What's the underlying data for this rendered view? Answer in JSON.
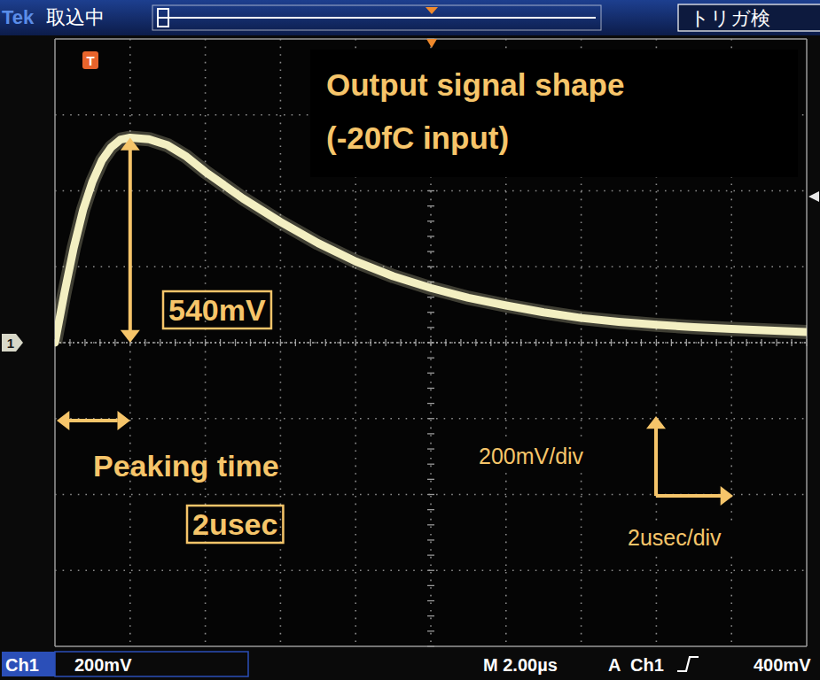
{
  "chart_data": {
    "type": "line",
    "title": "Output signal shape",
    "subtitle": "(-20fC input)",
    "x": [
      0,
      0.25,
      0.5,
      0.75,
      1,
      1.25,
      1.5,
      1.75,
      2,
      2.5,
      3,
      3.5,
      4,
      5,
      6,
      7,
      8,
      9,
      10,
      11,
      12,
      13,
      14,
      15,
      16,
      17,
      18,
      19,
      20
    ],
    "values": [
      0,
      130,
      250,
      350,
      425,
      480,
      515,
      535,
      540,
      536,
      520,
      490,
      450,
      380,
      318,
      262,
      214,
      175,
      144,
      118,
      98,
      80,
      65,
      55,
      47,
      41,
      36,
      32,
      28
    ],
    "color": "#f3efc2",
    "xlim": [
      0,
      20
    ],
    "ylim": [
      -800,
      800
    ],
    "xticks": [
      0,
      2,
      4,
      6,
      8,
      10,
      12,
      14,
      16,
      18,
      20
    ],
    "yticks": [
      -800,
      -600,
      -400,
      -200,
      0,
      200,
      400,
      600,
      800
    ],
    "grid": true,
    "tick_labels": false,
    "annotations": [
      "540mV",
      "Peaking time",
      "2usec",
      "200mV/div",
      "2usec/div"
    ]
  },
  "screen": {
    "header": {
      "brand": "Tek",
      "state": "取込中",
      "trigger_state": "トリガ検"
    },
    "channel_marker": "1",
    "trigger_marker": "T",
    "footer": {
      "channel": "Ch1",
      "volts_per_div": "200mV",
      "timebase": "M 2.00µs",
      "trigger_mode": "A",
      "trigger_source": "Ch1",
      "trigger_level": "400mV"
    }
  }
}
